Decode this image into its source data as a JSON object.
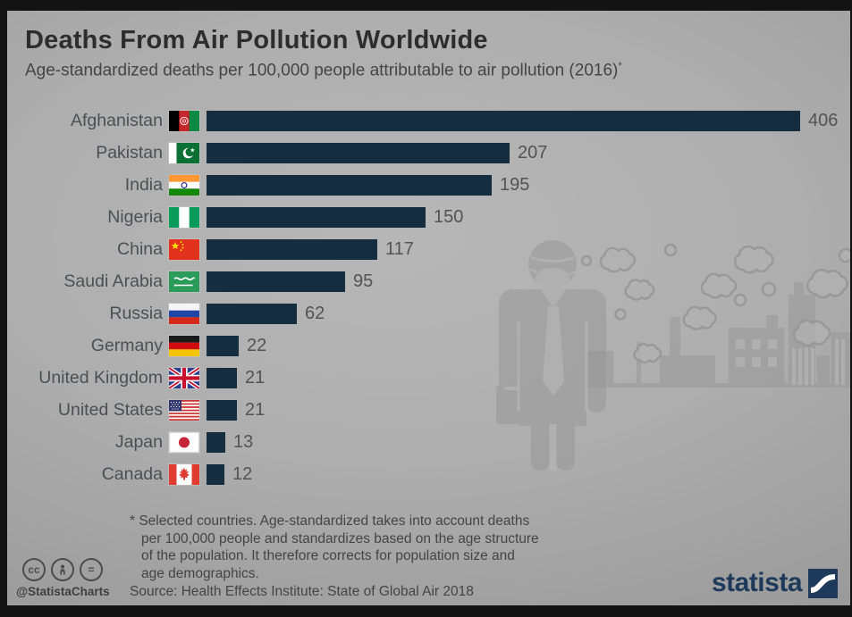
{
  "title": "Deaths From Air Pollution Worldwide",
  "subtitle": "Age-standardized deaths per 100,000 people attributable to air pollution (2016)",
  "subtitle_footnote_marker": "*",
  "chart_data": {
    "type": "bar",
    "orientation": "horizontal",
    "title": "Deaths From Air Pollution Worldwide",
    "subtitle": "Age-standardized deaths per 100,000 people attributable to air pollution (2016)*",
    "categories": [
      "Afghanistan",
      "Pakistan",
      "India",
      "Nigeria",
      "China",
      "Saudi Arabia",
      "Russia",
      "Germany",
      "United Kingdom",
      "United States",
      "Japan",
      "Canada"
    ],
    "values": [
      406,
      207,
      195,
      150,
      117,
      95,
      62,
      22,
      21,
      21,
      13,
      12
    ],
    "value_axis_max": 406,
    "bar_color": "#142e3f",
    "grid": "off",
    "legend": "none",
    "flag_icons": [
      "afghanistan-flag-icon",
      "pakistan-flag-icon",
      "india-flag-icon",
      "nigeria-flag-icon",
      "china-flag-icon",
      "saudi-arabia-flag-icon",
      "russia-flag-icon",
      "germany-flag-icon",
      "united-kingdom-flag-icon",
      "united-states-flag-icon",
      "japan-flag-icon",
      "canada-flag-icon"
    ]
  },
  "footnote_lines": [
    "* Selected countries. Age-standardized takes into account deaths",
    "per 100,000 people and standardizes based on the age structure",
    "of the population. It therefore corrects for population size and",
    "age demographics."
  ],
  "source": "Source: Health Effects Institute: State of Global Air 2018",
  "credits": {
    "handle": "@StatistaCharts",
    "license_icons": [
      "cc-icon",
      "attribution-person-icon",
      "equals-icon"
    ],
    "cc_label": "cc",
    "equals_label": "="
  },
  "brand": {
    "name": "statista"
  }
}
